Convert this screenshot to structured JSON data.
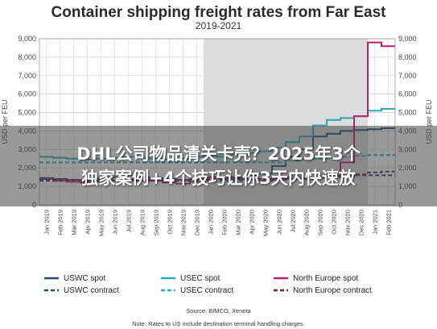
{
  "chart_data": {
    "type": "line",
    "title": "Container shipping freight rates from Far East",
    "subtitle": "2019-2021",
    "ylabel": "USD per FEU",
    "ylim": [
      0,
      9000
    ],
    "yticks": [
      "0",
      "1,000",
      "2,000",
      "3,000",
      "4,000",
      "5,000",
      "6,000",
      "7,000",
      "8,000",
      "9,000"
    ],
    "categories": [
      "Jan 2019",
      "Feb 2019",
      "Mar 2019",
      "Apr 2019",
      "May 2019",
      "Jun 2019",
      "Jul 2019",
      "Aug 2019",
      "Sep 2019",
      "Oct 2019",
      "Nov 2019",
      "Dec 2019",
      "Jan 2020",
      "Feb 2020",
      "Mar 2020",
      "Apr 2020",
      "May 2020",
      "Jun 2020",
      "Jul 2020",
      "Aug 2020",
      "Sep 2020",
      "Oct 2020",
      "Nov 2020",
      "Dec 2020",
      "Jan 2021",
      "Feb 2021"
    ],
    "shaded_region": [
      "Jan 2020",
      "Jan 2021"
    ],
    "grid": true,
    "series": [
      {
        "name": "USWC spot",
        "color": "#1e4f74",
        "dash": "solid",
        "values": [
          1450,
          1400,
          1350,
          1300,
          1450,
          1500,
          1600,
          1500,
          1450,
          1400,
          1350,
          1400,
          1500,
          1450,
          1500,
          1600,
          1700,
          2100,
          2600,
          3000,
          3700,
          3850,
          4000,
          4050,
          4100,
          4150
        ]
      },
      {
        "name": "USWC contract",
        "color": "#1e4f74",
        "dash": "dashed",
        "values": [
          1300,
          1300,
          1300,
          1300,
          1300,
          1300,
          1300,
          1300,
          1300,
          1300,
          1300,
          1300,
          1300,
          1300,
          1300,
          1400,
          1400,
          1450,
          1500,
          1500,
          1500,
          1550,
          1550,
          1600,
          1600,
          1600
        ]
      },
      {
        "name": "USEC spot",
        "color": "#2aa8b3",
        "dash": "solid",
        "values": [
          2600,
          2550,
          2500,
          2450,
          2500,
          2550,
          2600,
          2550,
          2500,
          2450,
          2500,
          2600,
          2650,
          2600,
          2700,
          2800,
          2900,
          3100,
          3400,
          3700,
          4300,
          4600,
          4700,
          4800,
          5100,
          5200
        ]
      },
      {
        "name": "USEC contract",
        "color": "#2aa8b3",
        "dash": "dashed",
        "values": [
          2300,
          2300,
          2300,
          2300,
          2300,
          2300,
          2300,
          2300,
          2300,
          2300,
          2300,
          2300,
          2300,
          2300,
          2300,
          2300,
          2300,
          2300,
          2400,
          2450,
          2500,
          2550,
          2600,
          2650,
          2700,
          2700
        ]
      },
      {
        "name": "North Europe spot",
        "color": "#b3246a",
        "dash": "solid",
        "values": [
          1400,
          1300,
          1250,
          1200,
          1250,
          1300,
          1400,
          1350,
          1300,
          1200,
          1150,
          1250,
          1500,
          1450,
          1400,
          1350,
          1300,
          1350,
          1400,
          1400,
          1500,
          1600,
          2300,
          4800,
          8800,
          8600
        ]
      },
      {
        "name": "North Europe contract",
        "color": "#7a1f4d",
        "dash": "dashed",
        "values": [
          1350,
          1350,
          1350,
          1350,
          1350,
          1350,
          1350,
          1350,
          1350,
          1350,
          1350,
          1350,
          1400,
          1400,
          1400,
          1400,
          1400,
          1400,
          1400,
          1450,
          1450,
          1500,
          1550,
          1650,
          1750,
          1800
        ]
      }
    ],
    "legend_placement": "bottom",
    "source": "Source: BIMCO, Xeneta",
    "note": "Note: Rates to US include destination terminal handling charges."
  },
  "overlay": {
    "line1": "DHL公司物品清关卡壳？2025年3个",
    "line2": "独家案例+4个技巧让你3天内快速放"
  }
}
